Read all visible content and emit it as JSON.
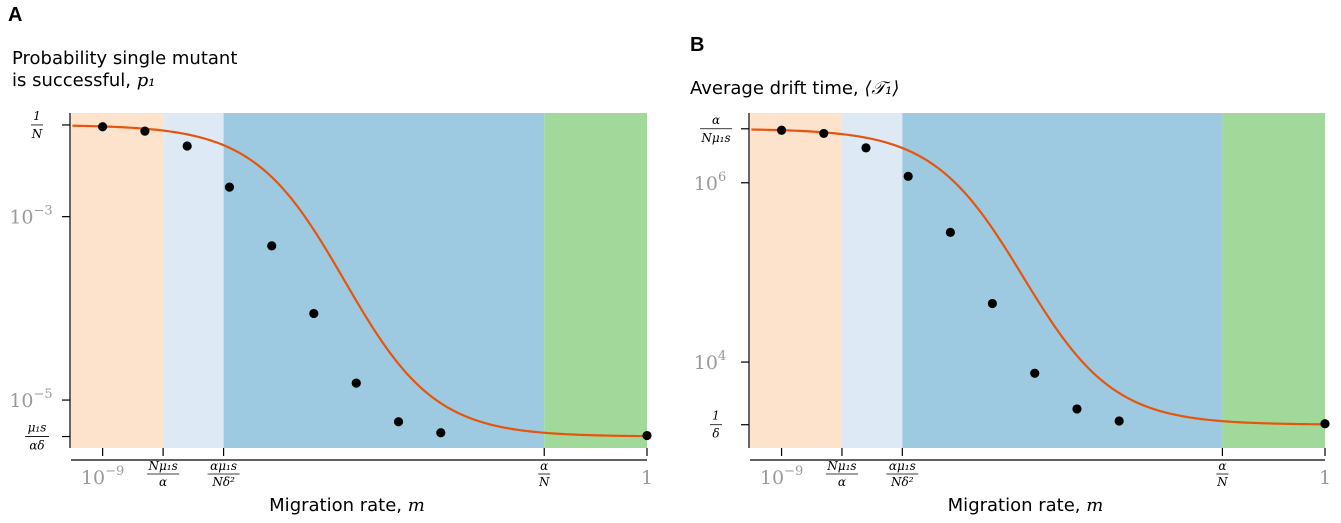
{
  "chart_data": [
    {
      "type": "line",
      "panel_letter": "A",
      "ylabel_line1": "Probability single mutant",
      "ylabel_line2": "is successful, ",
      "ylabel_symbol": "p₁",
      "xlabel_text": "Migration rate, ",
      "xlabel_symbol": "m",
      "x_scale": "log",
      "y_scale": "log",
      "xlim": [
        3e-10,
        1
      ],
      "ylim": [
        3e-06,
        0.0135
      ],
      "x_ticks": [
        {
          "label": "10",
          "sup": "−9",
          "value": 1e-09
        },
        {
          "label": "1",
          "value": 1
        }
      ],
      "x_fraction_ticks": [
        {
          "num": "Nμ₁s",
          "den": "α",
          "value": 1e-08
        },
        {
          "num": "αμ₁s",
          "den": "Nδ²",
          "value": 1e-07
        },
        {
          "num": "α",
          "den": "N",
          "value": 0.02
        }
      ],
      "y_ticks": [
        {
          "label": "10",
          "sup": "−3",
          "value": 0.001
        },
        {
          "label": "10",
          "sup": "−5",
          "value": 1e-05
        }
      ],
      "y_fraction_ticks": [
        {
          "num": "1",
          "den": "N",
          "value": 0.01
        },
        {
          "num": "μ₁s",
          "den": "αδ",
          "value": 4e-06
        }
      ],
      "regions": [
        {
          "from": 3e-10,
          "to": 1e-08,
          "color": "#fde3cc"
        },
        {
          "from": 1e-08,
          "to": 1e-07,
          "color": "#dde9f5"
        },
        {
          "from": 1e-07,
          "to": 0.02,
          "color": "#9ecae1"
        },
        {
          "from": 0.02,
          "to": 1,
          "color": "#a1d99b"
        }
      ],
      "line_color": "#e6550d",
      "curve": {
        "upper": 0.01,
        "lower": 4e-06,
        "midpoint_m": 1e-05,
        "decades_per_e": 0.75
      },
      "points": [
        {
          "x": 1e-09,
          "y": 0.00955
        },
        {
          "x": 5e-09,
          "y": 0.00856
        },
        {
          "x": 2.5e-08,
          "y": 0.0059
        },
        {
          "x": 1.25e-07,
          "y": 0.0021
        },
        {
          "x": 6.25e-07,
          "y": 0.00048
        },
        {
          "x": 3.1e-06,
          "y": 8.8e-05
        },
        {
          "x": 1.56e-05,
          "y": 1.53e-05
        },
        {
          "x": 7.8e-05,
          "y": 5.8e-06
        },
        {
          "x": 0.00039,
          "y": 4.4e-06
        },
        {
          "x": 1,
          "y": 4.1e-06
        }
      ]
    },
    {
      "type": "line",
      "panel_letter": "B",
      "ylabel_text": "Average drift time, ",
      "ylabel_symbol": "⟨𝒯₁⟩",
      "xlabel_text": "Migration rate, ",
      "xlabel_symbol": "m",
      "x_scale": "log",
      "y_scale": "log",
      "xlim": [
        3e-10,
        1
      ],
      "ylim": [
        1100,
        6000000
      ],
      "x_ticks": [
        {
          "label": "10",
          "sup": "−9",
          "value": 1e-09
        },
        {
          "label": "1",
          "value": 1
        }
      ],
      "x_fraction_ticks": [
        {
          "num": "Nμ₁s",
          "den": "α",
          "value": 1e-08
        },
        {
          "num": "αμ₁s",
          "den": "Nδ²",
          "value": 1e-07
        },
        {
          "num": "α",
          "den": "N",
          "value": 0.02
        }
      ],
      "y_ticks": [
        {
          "label": "10",
          "sup": "6",
          "value": 1000000
        },
        {
          "label": "10",
          "sup": "4",
          "value": 10000
        }
      ],
      "y_fraction_ticks": [
        {
          "num": "α",
          "den": "Nμ₁s",
          "value": 4000000
        },
        {
          "num": "1",
          "den": "δ",
          "value": 2000
        }
      ],
      "regions": [
        {
          "from": 3e-10,
          "to": 1e-08,
          "color": "#fde3cc"
        },
        {
          "from": 1e-08,
          "to": 1e-07,
          "color": "#dde9f5"
        },
        {
          "from": 1e-07,
          "to": 0.02,
          "color": "#9ecae1"
        },
        {
          "from": 0.02,
          "to": 1,
          "color": "#a1d99b"
        }
      ],
      "line_color": "#e6550d",
      "curve": {
        "upper": 4000000,
        "lower": 2000,
        "midpoint_m": 1e-05,
        "decades_per_e": 0.75
      },
      "points": [
        {
          "x": 1e-09,
          "y": 3850000
        },
        {
          "x": 5e-09,
          "y": 3550000
        },
        {
          "x": 2.5e-08,
          "y": 2450000
        },
        {
          "x": 1.25e-07,
          "y": 1180000
        },
        {
          "x": 6.25e-07,
          "y": 280000
        },
        {
          "x": 3.1e-06,
          "y": 45000
        },
        {
          "x": 1.56e-05,
          "y": 7500
        },
        {
          "x": 7.8e-05,
          "y": 3000
        },
        {
          "x": 0.00039,
          "y": 2200
        },
        {
          "x": 1,
          "y": 2050
        }
      ]
    }
  ]
}
